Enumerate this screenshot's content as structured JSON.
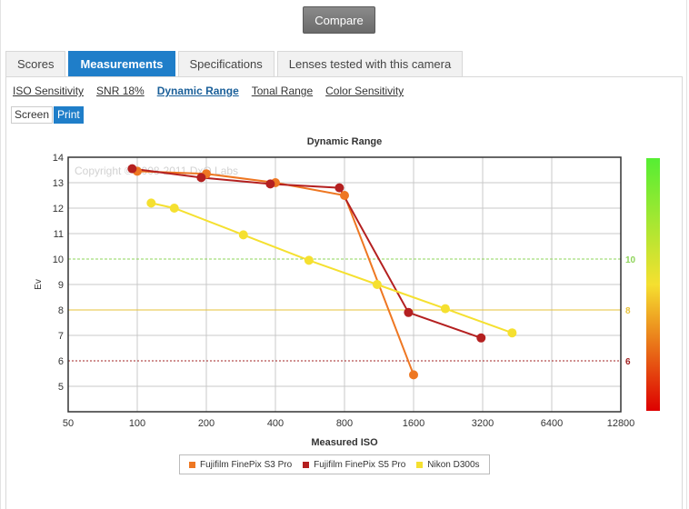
{
  "compare_label": "Compare",
  "tabs": [
    {
      "label": "Scores",
      "active": false
    },
    {
      "label": "Measurements",
      "active": true
    },
    {
      "label": "Specifications",
      "active": false
    },
    {
      "label": "Lenses tested with this camera",
      "active": false
    }
  ],
  "subnav": [
    {
      "label": "ISO Sensitivity",
      "active": false
    },
    {
      "label": "SNR 18%",
      "active": false
    },
    {
      "label": "Dynamic Range",
      "active": true
    },
    {
      "label": "Tonal Range",
      "active": false
    },
    {
      "label": "Color Sensitivity",
      "active": false
    }
  ],
  "mode": {
    "screen": "Screen",
    "print": "Print",
    "active": "print"
  },
  "chart_data": {
    "type": "line",
    "title": "Dynamic Range",
    "xlabel": "Measured ISO",
    "ylabel": "Ev",
    "x_scale": "log2",
    "xlim": [
      50,
      12800
    ],
    "ylim": [
      4,
      14
    ],
    "x_ticks": [
      "50",
      "100",
      "200",
      "400",
      "800",
      "1600",
      "3200",
      "6400",
      "12800"
    ],
    "y_ticks": [
      "5",
      "6",
      "7",
      "8",
      "9",
      "10",
      "11",
      "12",
      "13",
      "14"
    ],
    "grid": true,
    "watermark": "Copyright © 2008-2011 DxO Labs",
    "reference_lines": [
      {
        "value": 10,
        "label": "10",
        "color": "#8ed45a",
        "style": "dashed"
      },
      {
        "value": 8,
        "label": "8",
        "color": "#e7c23a",
        "style": "solid"
      },
      {
        "value": 6,
        "label": "6",
        "color": "#a02020",
        "style": "dotted"
      }
    ],
    "colorbar": {
      "top_color": "#55ee33",
      "mid_color": "#f5e030",
      "bottom_color": "#dd0000"
    },
    "legend_position": "bottom-center",
    "series": [
      {
        "name": "Fujifilm FinePix S3 Pro",
        "color": "#ee7722",
        "points": [
          [
            100,
            13.45
          ],
          [
            200,
            13.35
          ],
          [
            400,
            13.0
          ],
          [
            800,
            12.5
          ],
          [
            1600,
            5.45
          ]
        ]
      },
      {
        "name": "Fujifilm FinePix S5 Pro",
        "color": "#b42020",
        "points": [
          [
            95,
            13.55
          ],
          [
            190,
            13.2
          ],
          [
            380,
            12.95
          ],
          [
            760,
            12.8
          ],
          [
            1520,
            7.9
          ],
          [
            3150,
            6.9
          ]
        ]
      },
      {
        "name": "Nikon D300s",
        "color": "#f5e030",
        "points": [
          [
            115,
            12.2
          ],
          [
            145,
            12.0
          ],
          [
            290,
            10.95
          ],
          [
            560,
            9.95
          ],
          [
            1110,
            9.0
          ],
          [
            2200,
            8.05
          ],
          [
            4300,
            7.1
          ]
        ]
      }
    ]
  }
}
